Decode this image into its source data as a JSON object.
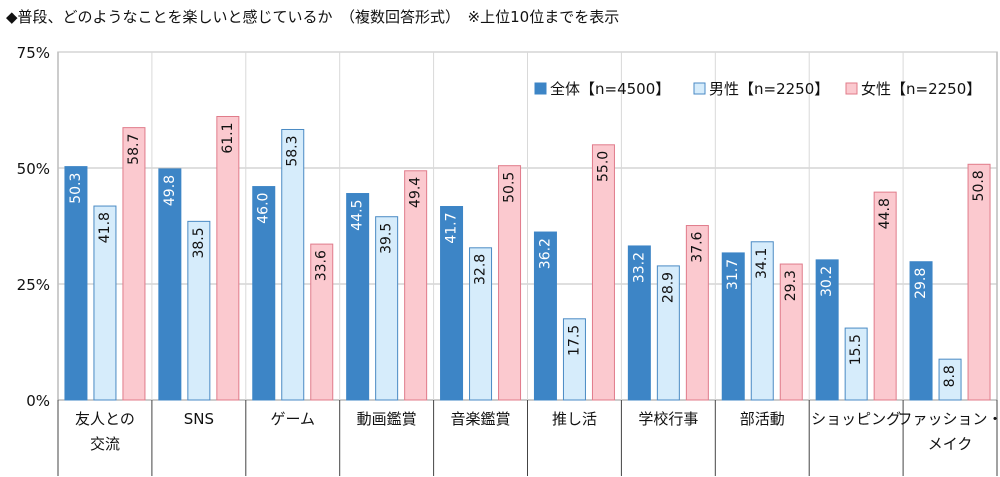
{
  "title": "◆普段、どのようなことを楽しいと感じているか　（複数回答形式）　※上位10位までを表示",
  "colors": {
    "all": "#3d85c6",
    "male": "#d6ecfb",
    "female": "#fbc9cf",
    "male_stroke": "#4a8ac4",
    "female_stroke": "#e07b8a",
    "grid": "#bfbfbf"
  },
  "chart_data": {
    "type": "bar",
    "categories": [
      [
        "友人との",
        "交流"
      ],
      [
        "SNS"
      ],
      [
        "ゲーム"
      ],
      [
        "動画鑑賞"
      ],
      [
        "音楽鑑賞"
      ],
      [
        "推し活"
      ],
      [
        "学校行事"
      ],
      [
        "部活動"
      ],
      [
        "ショッピング"
      ],
      [
        "ファッション・",
        "メイク"
      ]
    ],
    "series": [
      {
        "name": "全体【n=4500】",
        "values": [
          50.3,
          49.8,
          46.0,
          44.5,
          41.7,
          36.2,
          33.2,
          31.7,
          30.2,
          29.8
        ]
      },
      {
        "name": "男性【n=2250】",
        "values": [
          41.8,
          38.5,
          58.3,
          39.5,
          32.8,
          17.5,
          28.9,
          34.1,
          15.5,
          8.8
        ]
      },
      {
        "name": "女性【n=2250】",
        "values": [
          58.7,
          61.1,
          33.6,
          49.4,
          50.5,
          55.0,
          37.6,
          29.3,
          44.8,
          50.8
        ]
      }
    ],
    "ylim": [
      0,
      75
    ],
    "yticks": [
      "0%",
      "25%",
      "50%",
      "75%"
    ],
    "ytick_values": [
      0,
      25,
      50,
      75
    ],
    "legend_position": "top-right",
    "grid": true
  }
}
